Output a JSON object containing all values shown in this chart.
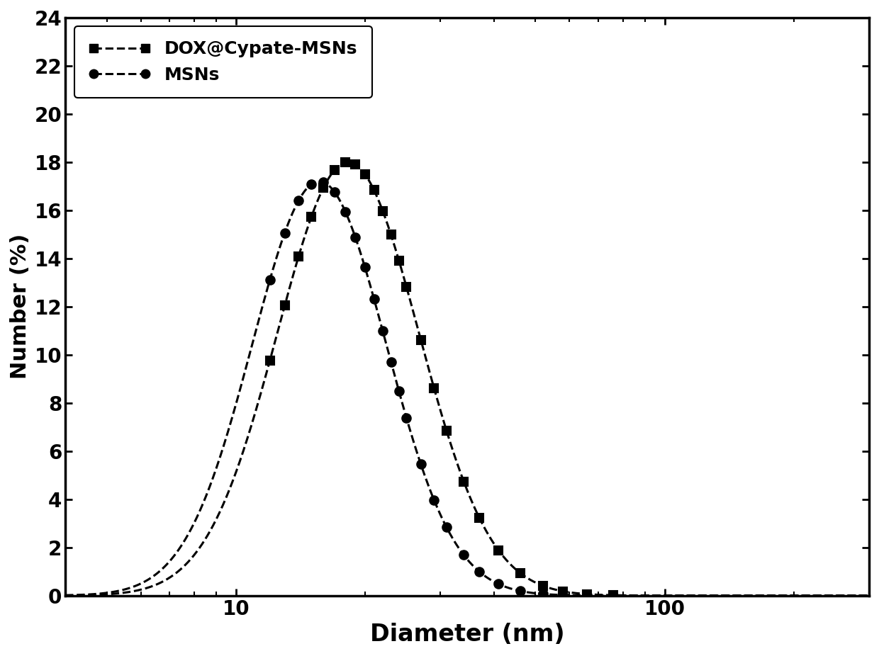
{
  "title": "",
  "xlabel": "Diameter (nm)",
  "ylabel": "Number (%)",
  "xlim": [
    4,
    300
  ],
  "ylim": [
    0,
    24
  ],
  "yticks": [
    0,
    2,
    4,
    6,
    8,
    10,
    12,
    14,
    16,
    18,
    20,
    22,
    24
  ],
  "series1_label": "DOX@Cypate-MSNs",
  "series2_label": "MSNs",
  "color": "#000000",
  "series1_linestyle": "--",
  "series2_linestyle": "--",
  "series1_marker": "s",
  "series2_marker": "o",
  "series1_mu": 3.05,
  "series1_sigma": 0.38,
  "series1_peak": 18.0,
  "series2_mu": 2.88,
  "series2_sigma": 0.36,
  "series2_peak": 17.2,
  "background_color": "#ffffff",
  "linewidth": 2.2,
  "markersize": 9,
  "markeredgewidth": 1.5,
  "xlabel_fontsize": 24,
  "ylabel_fontsize": 22,
  "tick_labelsize": 20,
  "legend_fontsize": 18,
  "spine_linewidth": 2.5
}
